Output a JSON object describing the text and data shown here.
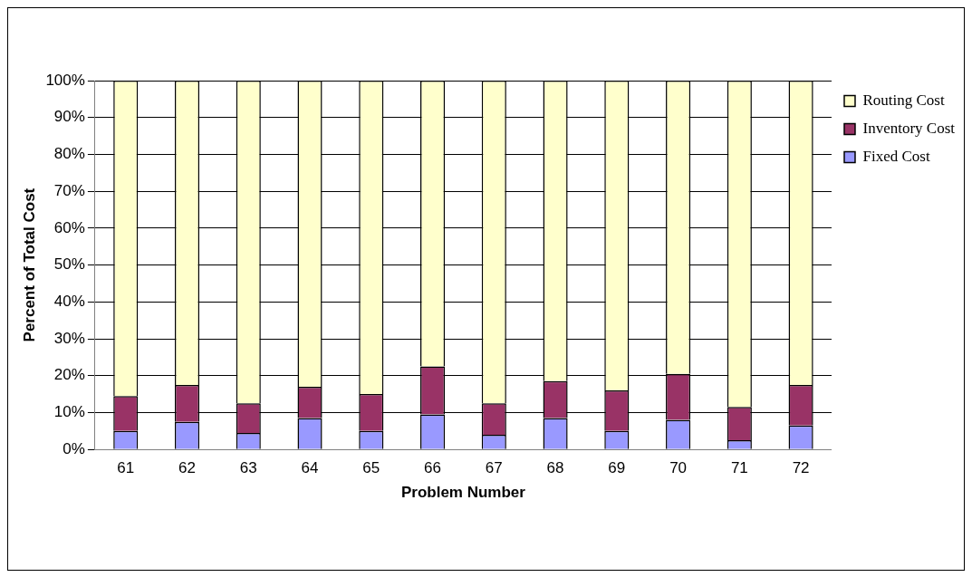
{
  "chart_data": {
    "type": "bar",
    "stacked": true,
    "xlabel": "Problem Number",
    "ylabel": "Percent of Total Cost",
    "categories": [
      "61",
      "62",
      "63",
      "64",
      "65",
      "66",
      "67",
      "68",
      "69",
      "70",
      "71",
      "72"
    ],
    "series": [
      {
        "name": "Fixed Cost",
        "color": "#9999ff",
        "values": [
          5,
          7.5,
          4.5,
          8.5,
          5,
          9.5,
          4,
          8.5,
          5,
          8,
          2.5,
          6.5
        ]
      },
      {
        "name": "Inventory Cost",
        "color": "#993366",
        "values": [
          9.5,
          10,
          8,
          8.5,
          10,
          13,
          8.5,
          10,
          11,
          12.5,
          9,
          11
        ]
      },
      {
        "name": "Routing Cost",
        "color": "#ffffcc",
        "values": [
          85.5,
          82.5,
          87.5,
          83,
          85,
          77.5,
          87.5,
          81.5,
          84,
          79.5,
          88.5,
          82.5
        ]
      }
    ],
    "ylim": [
      0,
      100
    ],
    "yticks": [
      {
        "value": 0,
        "label": "0%"
      },
      {
        "value": 10,
        "label": "10%"
      },
      {
        "value": 20,
        "label": "20%"
      },
      {
        "value": 30,
        "label": "30%"
      },
      {
        "value": 40,
        "label": "40%"
      },
      {
        "value": 50,
        "label": "50%"
      },
      {
        "value": 60,
        "label": "60%"
      },
      {
        "value": 70,
        "label": "70%"
      },
      {
        "value": 80,
        "label": "80%"
      },
      {
        "value": 90,
        "label": "90%"
      },
      {
        "value": 100,
        "label": "100%"
      }
    ],
    "grid": "y",
    "legend": "right"
  }
}
